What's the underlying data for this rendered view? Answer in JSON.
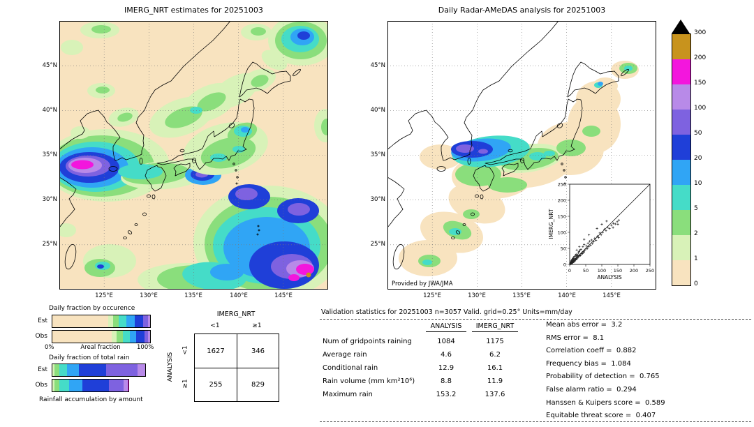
{
  "left_map": {
    "title": "IMERG_NRT estimates for 20251003",
    "lat_ticks": [
      "45°N",
      "40°N",
      "35°N",
      "30°N",
      "25°N"
    ],
    "lon_ticks": [
      "125°E",
      "130°E",
      "135°E",
      "140°E",
      "145°E"
    ]
  },
  "right_map": {
    "title": "Daily Radar-AMeDAS analysis for 20251003",
    "credit": "Provided by JWA/JMA",
    "lat_ticks": [
      "45°N",
      "40°N",
      "35°N",
      "30°N",
      "25°N"
    ],
    "lon_ticks": [
      "125°E",
      "130°E",
      "135°E",
      "140°E",
      "145°E"
    ],
    "inset": {
      "xlabel": "ANALYSIS",
      "ylabel": "IMERG_NRT",
      "x_ticks": [
        "0",
        "50",
        "100",
        "150",
        "200",
        "250"
      ],
      "y_ticks": [
        "0",
        "50",
        "100",
        "150",
        "200",
        "250"
      ]
    }
  },
  "colorbar": {
    "levels_top_to_bottom": [
      "300",
      "200",
      "150",
      "100",
      "50",
      "20",
      "10",
      "5",
      "2",
      "1",
      "0"
    ],
    "colors_low_to_high": [
      "#f8e3bf",
      "#d8f2b8",
      "#8ade7c",
      "#45dcc8",
      "#30a5f5",
      "#1f3fd8",
      "#7e62e0",
      "#b88ae8",
      "#f316dd",
      "#c8931d"
    ],
    "over_color": "#000000",
    "units": "mm/day"
  },
  "fraction_panel": {
    "occurrence_title": "Daily fraction by occurence",
    "total_rain_title": "Daily fraction of total rain",
    "row_labels": [
      "Est",
      "Obs"
    ],
    "axis_min": "0%",
    "axis_label": "Areal fraction",
    "axis_max": "100%",
    "footer": "Rainfall accumulation by amount"
  },
  "contingency": {
    "col_header": "IMERG_NRT",
    "row_header": "ANALYSIS",
    "col_labels": [
      "<1",
      "≥1"
    ],
    "row_labels": [
      "<1",
      "≥1"
    ],
    "values": [
      [
        1627,
        346
      ],
      [
        255,
        829
      ]
    ]
  },
  "validation": {
    "title": "Validation statistics for 20251003  n=3057 Valid. grid=0.25° Units=mm/day",
    "col_headers": [
      "ANALYSIS",
      "IMERG_NRT"
    ],
    "rows": [
      {
        "label": "Num of gridpoints raining",
        "analysis": "1084",
        "imerg": "1175"
      },
      {
        "label": "Average rain",
        "analysis": "4.6",
        "imerg": "6.2"
      },
      {
        "label": "Conditional rain",
        "analysis": "12.9",
        "imerg": "16.1"
      },
      {
        "label": "Rain volume (mm km²10⁶)",
        "analysis": "8.8",
        "imerg": "11.9"
      },
      {
        "label": "Maximum rain",
        "analysis": "153.2",
        "imerg": "137.6"
      }
    ],
    "stats": [
      {
        "label": "Mean abs error",
        "value": "3.2"
      },
      {
        "label": "RMS error",
        "value": "8.1"
      },
      {
        "label": "Correlation coeff",
        "value": "0.882"
      },
      {
        "label": "Frequency bias",
        "value": "1.084"
      },
      {
        "label": "Probability of detection",
        "value": "0.765"
      },
      {
        "label": "False alarm ratio",
        "value": "0.294"
      },
      {
        "label": "Hanssen & Kuipers score",
        "value": "0.589"
      },
      {
        "label": "Equitable threat score",
        "value": "0.407"
      }
    ]
  },
  "chart_data": [
    {
      "type": "heatmap",
      "name": "imerg_map",
      "title": "IMERG_NRT estimates for 20251003",
      "units": "mm/day",
      "lat_tick_range": [
        "25°N",
        "45°N"
      ],
      "lon_tick_range": [
        "125°E",
        "145°E"
      ],
      "levels": [
        0,
        1,
        2,
        5,
        10,
        20,
        50,
        100,
        150,
        200,
        300
      ]
    },
    {
      "type": "heatmap",
      "name": "radar_amedas_map",
      "title": "Daily Radar-AMeDAS analysis for 20251003",
      "units": "mm/day",
      "lat_tick_range": [
        "25°N",
        "45°N"
      ],
      "lon_tick_range": [
        "125°E",
        "145°E"
      ],
      "levels": [
        0,
        1,
        2,
        5,
        10,
        20,
        50,
        100,
        150,
        200,
        300
      ]
    },
    {
      "type": "bar",
      "name": "daily_fraction_by_occurrence",
      "title": "Daily fraction by occurence",
      "orientation": "horizontal-stacked",
      "xlabel": "Areal fraction",
      "xlim": [
        0,
        1
      ],
      "note": "segments = [color_level_index, fraction]; fractions estimated from figure",
      "rows": [
        {
          "label": "Est",
          "segments": [
            [
              0,
              0.57
            ],
            [
              1,
              0.05
            ],
            [
              2,
              0.06
            ],
            [
              3,
              0.08
            ],
            [
              4,
              0.08
            ],
            [
              5,
              0.09
            ],
            [
              6,
              0.05
            ],
            [
              7,
              0.02
            ]
          ]
        },
        {
          "label": "Obs",
          "segments": [
            [
              0,
              0.61
            ],
            [
              1,
              0.05
            ],
            [
              2,
              0.06
            ],
            [
              3,
              0.07
            ],
            [
              4,
              0.07
            ],
            [
              5,
              0.08
            ],
            [
              6,
              0.04
            ],
            [
              7,
              0.02
            ]
          ]
        }
      ]
    },
    {
      "type": "bar",
      "name": "daily_fraction_of_total_rain",
      "title": "Daily fraction of total rain",
      "orientation": "horizontal-stacked",
      "xlim": [
        0,
        1
      ],
      "note": "segments = [color_level_index, fraction]; fractions estimated from figure",
      "rows": [
        {
          "label": "Est",
          "segments": [
            [
              1,
              0.02
            ],
            [
              2,
              0.05
            ],
            [
              3,
              0.08
            ],
            [
              4,
              0.12
            ],
            [
              5,
              0.28
            ],
            [
              6,
              0.32
            ],
            [
              7,
              0.08
            ]
          ]
        },
        {
          "label": "Obs",
          "segments": [
            [
              1,
              0.02
            ],
            [
              2,
              0.05
            ],
            [
              3,
              0.1
            ],
            [
              4,
              0.14
            ],
            [
              5,
              0.27
            ],
            [
              6,
              0.15
            ],
            [
              7,
              0.04
            ],
            [
              8,
              0.01
            ]
          ]
        }
      ]
    },
    {
      "type": "scatter",
      "name": "imerg_vs_analysis_inset",
      "xlabel": "ANALYSIS",
      "ylabel": "IMERG_NRT",
      "xlim": [
        0,
        250
      ],
      "ylim": [
        0,
        250
      ],
      "diagonal": true,
      "marker": "+",
      "note": "point positions estimated from figure",
      "points": [
        [
          2,
          1
        ],
        [
          2,
          4
        ],
        [
          3,
          2
        ],
        [
          3,
          6
        ],
        [
          4,
          3
        ],
        [
          4,
          8
        ],
        [
          5,
          4
        ],
        [
          5,
          11
        ],
        [
          6,
          5
        ],
        [
          6,
          9
        ],
        [
          7,
          3
        ],
        [
          7,
          13
        ],
        [
          8,
          7
        ],
        [
          8,
          16
        ],
        [
          9,
          5
        ],
        [
          9,
          11
        ],
        [
          10,
          8
        ],
        [
          10,
          19
        ],
        [
          11,
          9
        ],
        [
          11,
          15
        ],
        [
          12,
          10
        ],
        [
          12,
          22
        ],
        [
          13,
          8
        ],
        [
          13,
          17
        ],
        [
          14,
          12
        ],
        [
          15,
          10
        ],
        [
          15,
          25
        ],
        [
          16,
          13
        ],
        [
          17,
          19
        ],
        [
          18,
          14
        ],
        [
          18,
          28
        ],
        [
          19,
          16
        ],
        [
          20,
          18
        ],
        [
          20,
          32
        ],
        [
          21,
          24
        ],
        [
          22,
          17
        ],
        [
          23,
          27
        ],
        [
          24,
          20
        ],
        [
          25,
          30
        ],
        [
          26,
          22
        ],
        [
          27,
          36
        ],
        [
          28,
          25
        ],
        [
          29,
          40
        ],
        [
          30,
          27
        ],
        [
          31,
          44
        ],
        [
          32,
          30
        ],
        [
          34,
          28
        ],
        [
          35,
          47
        ],
        [
          36,
          33
        ],
        [
          38,
          36
        ],
        [
          40,
          34
        ],
        [
          41,
          55
        ],
        [
          42,
          40
        ],
        [
          44,
          38
        ],
        [
          45,
          62
        ],
        [
          47,
          43
        ],
        [
          50,
          48
        ],
        [
          52,
          58
        ],
        [
          55,
          50
        ],
        [
          57,
          66
        ],
        [
          60,
          55
        ],
        [
          62,
          72
        ],
        [
          65,
          60
        ],
        [
          68,
          76
        ],
        [
          71,
          65
        ],
        [
          75,
          71
        ],
        [
          78,
          82
        ],
        [
          82,
          75
        ],
        [
          86,
          88
        ],
        [
          90,
          84
        ],
        [
          94,
          98
        ],
        [
          98,
          92
        ],
        [
          103,
          100
        ],
        [
          108,
          110
        ],
        [
          113,
          105
        ],
        [
          118,
          116
        ],
        [
          124,
          112
        ],
        [
          130,
          122
        ],
        [
          136,
          128
        ],
        [
          142,
          126
        ],
        [
          148,
          133
        ],
        [
          153,
          138
        ],
        [
          30,
          55
        ],
        [
          22,
          45
        ],
        [
          45,
          78
        ],
        [
          60,
          92
        ],
        [
          85,
          112
        ],
        [
          100,
          125
        ],
        [
          115,
          135
        ],
        [
          135,
          115
        ],
        [
          150,
          125
        ]
      ]
    },
    {
      "type": "table",
      "name": "contingency_table",
      "col_header": "IMERG_NRT",
      "row_header": "ANALYSIS",
      "col_labels": [
        "<1",
        "≥1"
      ],
      "row_labels": [
        "<1",
        "≥1"
      ],
      "values": [
        [
          1627,
          346
        ],
        [
          255,
          829
        ]
      ]
    },
    {
      "type": "table",
      "name": "validation_statistics",
      "columns": [
        "",
        "ANALYSIS",
        "IMERG_NRT"
      ],
      "rows": [
        [
          "Num of gridpoints raining",
          "1084",
          "1175"
        ],
        [
          "Average rain",
          "4.6",
          "6.2"
        ],
        [
          "Conditional rain",
          "12.9",
          "16.1"
        ],
        [
          "Rain volume (mm km²10⁶)",
          "8.8",
          "11.9"
        ],
        [
          "Maximum rain",
          "153.2",
          "137.6"
        ]
      ]
    }
  ]
}
